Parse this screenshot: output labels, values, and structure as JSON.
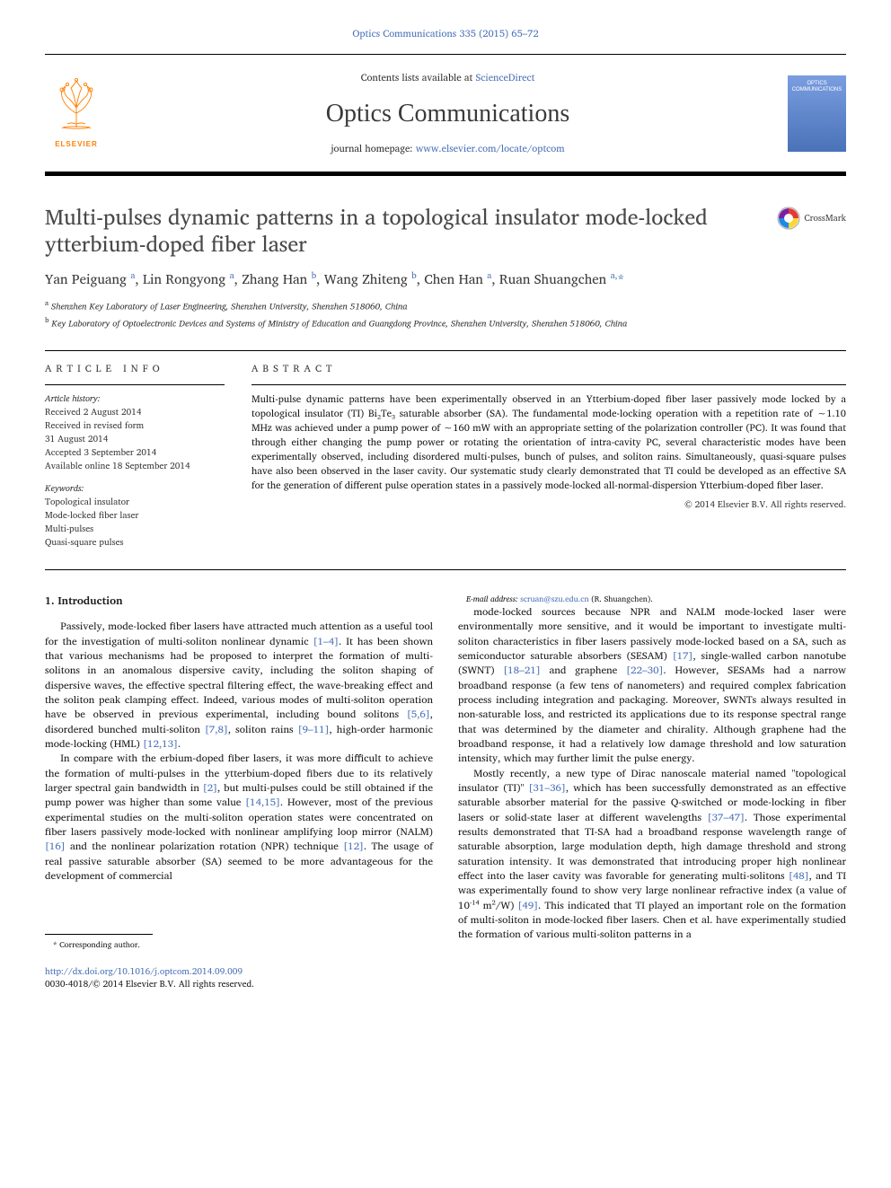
{
  "citation": "Optics Communications 335 (2015) 65–72",
  "header": {
    "contents_prefix": "Contents lists available at ",
    "contents_link": "ScienceDirect",
    "journal_name": "Optics Communications",
    "homepage_prefix": "journal homepage: ",
    "homepage_url": "www.elsevier.com/locate/optcom",
    "elsevier_label": "ELSEVIER",
    "cover_line1": "OPTICS",
    "cover_line2": "COMMUNICATIONS"
  },
  "title": "Multi-pulses dynamic patterns in a topological insulator mode-locked ytterbium-doped fiber laser",
  "crossmark": "CrossMark",
  "authors_html": "Yan Peiguang <sup>a</sup>, Lin Rongyong <sup>a</sup>, Zhang Han <sup>b</sup>, Wang Zhiteng <sup>b</sup>, Chen Han <sup>a</sup>, Ruan Shuangchen <sup>a,</sup><span class='star'>*</span>",
  "affiliations": {
    "a": "Shenzhen Key Laboratory of Laser Engineering, Shenzhen University, Shenzhen 518060, China",
    "b": "Key Laboratory of Optoelectronic Devices and Systems of Ministry of Education and Guangdong Province, Shenzhen University, Shenzhen 518060, China"
  },
  "info": {
    "header": "article info",
    "history_label": "Article history:",
    "history": [
      "Received 2 August 2014",
      "Received in revised form",
      "31 August 2014",
      "Accepted 3 September 2014",
      "Available online 18 September 2014"
    ],
    "keywords_label": "Keywords:",
    "keywords": [
      "Topological insulator",
      "Mode-locked fiber laser",
      "Multi-pulses",
      "Quasi-square pulses"
    ]
  },
  "abstract": {
    "header": "abstract",
    "text": "Multi-pulse dynamic patterns have been experimentally observed in an Ytterbium-doped fiber laser passively mode locked by a topological insulator (TI) Bi₂Te₃ saturable absorber (SA). The fundamental mode-locking operation with a repetition rate of ∼1.10 MHz was achieved under a pump power of ∼160 mW with an appropriate setting of the polarization controller (PC). It was found that through either changing the pump power or rotating the orientation of intra-cavity PC, several characteristic modes have been experimentally observed, including disordered multi-pulses, bunch of pulses, and soliton rains. Simultaneously, quasi-square pulses have also been observed in the laser cavity. Our systematic study clearly demonstrated that TI could be developed as an effective SA for the generation of different pulse operation states in a passively mode-locked all-normal-dispersion Ytterbium-doped fiber laser.",
    "copyright": "© 2014 Elsevier B.V. All rights reserved."
  },
  "body": {
    "section_heading": "1. Introduction",
    "p1": "Passively, mode-locked fiber lasers have attracted much attention as a useful tool for the investigation of multi-soliton nonlinear dynamic <a>[1–4]</a>. It has been shown that various mechanisms had be proposed to interpret the formation of multi-solitons in an anomalous dispersive cavity, including the soliton shaping of dispersive waves, the effective spectral filtering effect, the wave-breaking effect and the soliton peak clamping effect. Indeed, various modes of multi-soliton operation have be observed in previous experimental, including bound solitons <a>[5,6]</a>, disordered bunched multi-soliton <a>[7,8]</a>, soliton rains <a>[9–11]</a>, high-order harmonic mode-locking (HML) <a>[12,13]</a>.",
    "p2": "In compare with the erbium-doped fiber lasers, it was more difficult to achieve the formation of multi-pulses in the ytterbium-doped fibers due to its relatively larger spectral gain bandwidth in <a>[2]</a>, but multi-pulses could be still obtained if the pump power was higher than some value <a>[14,15]</a>. However, most of the previous experimental studies on the multi-soliton operation states were concentrated on fiber lasers passively mode-locked with nonlinear amplifying loop mirror (NALM) <a>[16]</a> and the nonlinear polarization rotation (NPR) technique <a>[12]</a>. The usage of real passive saturable absorber (SA) seemed to be more advantageous for the development of commercial",
    "p3": "mode-locked sources because NPR and NALM mode-locked laser were environmentally more sensitive, and it would be important to investigate multi-soliton characteristics in fiber lasers passively mode-locked based on a SA, such as semiconductor saturable absorbers (SESAM) <a>[17]</a>, single-walled carbon nanotube (SWNT) <a>[18–21]</a> and graphene <a>[22–30]</a>. However, SESAMs had a narrow broadband response (a few tens of nanometers) and required complex fabrication process including integration and packaging. Moreover, SWNTs always resulted in non-saturable loss, and restricted its applications due to its response spectral range that was determined by the diameter and chirality. Although graphene had the broadband response, it had a relatively low damage threshold and low saturation intensity, which may further limit the pulse energy.",
    "p4": "Mostly recently, a new type of Dirac nanoscale material named \"topological insulator (TI)\" <a>[31–36]</a>, which has been successfully demonstrated as an effective saturable absorber material for the passive Q-switched or mode-locking in fiber lasers or solid-state laser at different wavelengths <a>[37–47]</a>. Those experimental results demonstrated that TI-SA had a broadband response wavelength range of saturable absorption, large modulation depth, high damage threshold and strong saturation intensity. It was demonstrated that introducing proper high nonlinear effect into the laser cavity was favorable for generating multi-solitons <a>[48]</a>, and TI was experimentally found to show very large nonlinear refractive index (a value of 10⁻¹⁴ m²/W) <a>[49]</a>. This indicated that TI played an important role on the formation of multi-soliton in mode-locked fiber lasers. Chen et al. have experimentally studied the formation of various multi-soliton patterns in a"
  },
  "footnote": {
    "corresponding": "* Corresponding author.",
    "email_label": "E-mail address: ",
    "email": "scruan@szu.edu.cn",
    "email_name": " (R. Shuangchen)."
  },
  "footer": {
    "doi": "http://dx.doi.org/10.1016/j.optcom.2014.09.009",
    "issn": "0030-4018/© 2014 Elsevier B.V. All rights reserved."
  },
  "colors": {
    "link": "#4a72b8",
    "text": "#1a1a1a",
    "heading": "#484848",
    "elsevier_orange": "#ff7f00"
  }
}
